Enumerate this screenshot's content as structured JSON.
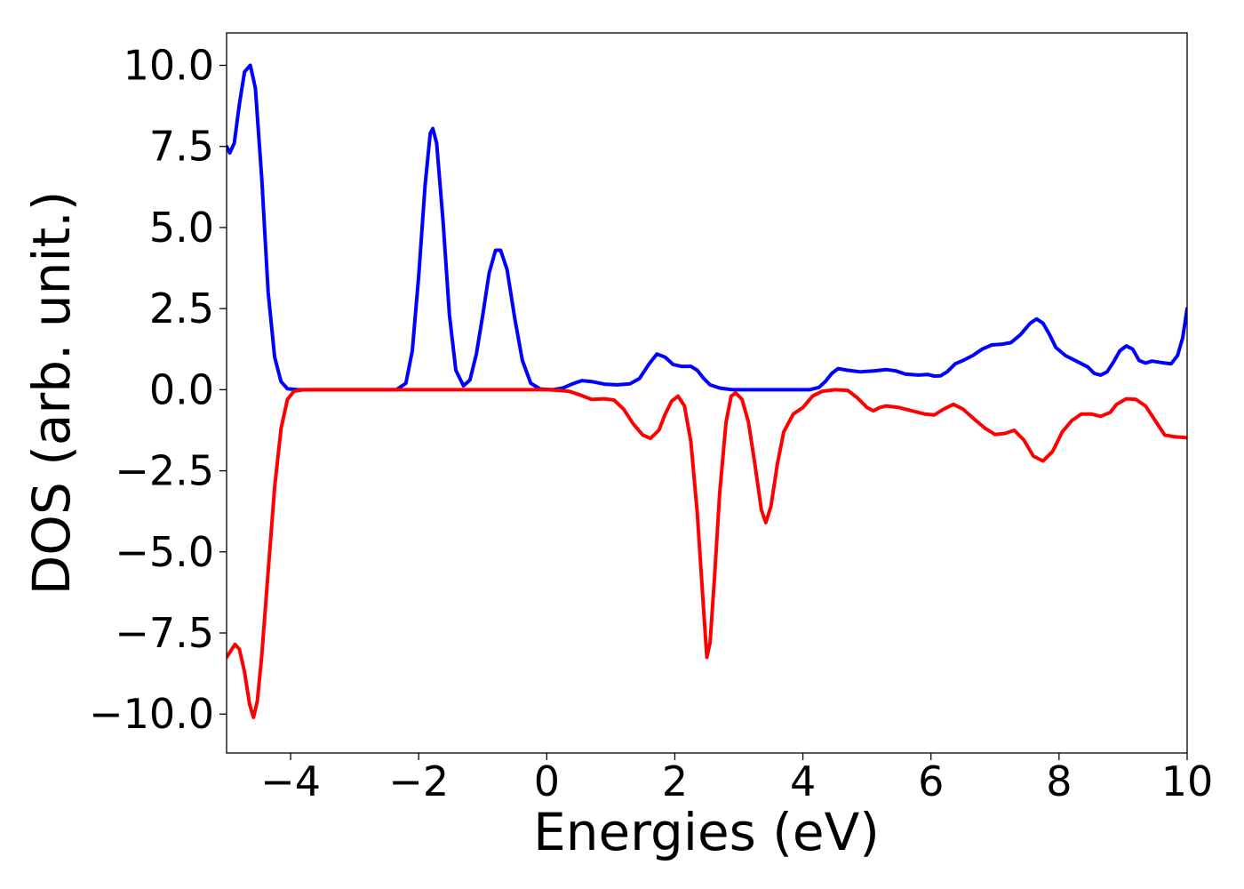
{
  "chart_data": {
    "type": "line",
    "title": "",
    "xlabel": "Energies (eV)",
    "ylabel": "DOS (arb. unit.)",
    "xlim": [
      -5,
      10
    ],
    "ylim": [
      -11.2,
      11
    ],
    "grid": false,
    "x_ticks": [
      -4,
      -2,
      0,
      2,
      4,
      6,
      8,
      10
    ],
    "x_tick_labels": [
      "−4",
      "−2",
      "0",
      "2",
      "4",
      "6",
      "8",
      "10"
    ],
    "y_ticks": [
      10,
      7.5,
      5,
      2.5,
      0,
      -2.5,
      -5,
      -7.5,
      -10
    ],
    "y_tick_labels": [
      "10.0",
      "7.5",
      "5.0",
      "2.5",
      "0.0",
      "−2.5",
      "−5.0",
      "−7.5",
      "−10.0"
    ],
    "series": [
      {
        "color": "#0000ff",
        "points": [
          [
            -5.0,
            7.5
          ],
          [
            -4.95,
            7.3
          ],
          [
            -4.88,
            7.6
          ],
          [
            -4.8,
            8.8
          ],
          [
            -4.72,
            9.8
          ],
          [
            -4.63,
            10.0
          ],
          [
            -4.55,
            9.3
          ],
          [
            -4.45,
            6.5
          ],
          [
            -4.35,
            3.0
          ],
          [
            -4.25,
            1.0
          ],
          [
            -4.15,
            0.25
          ],
          [
            -4.05,
            0.03
          ],
          [
            -3.9,
            0.0
          ],
          [
            -3.0,
            0.0
          ],
          [
            -2.35,
            0.0
          ],
          [
            -2.2,
            0.2
          ],
          [
            -2.1,
            1.2
          ],
          [
            -2.0,
            3.5
          ],
          [
            -1.9,
            6.3
          ],
          [
            -1.82,
            7.9
          ],
          [
            -1.78,
            8.05
          ],
          [
            -1.72,
            7.6
          ],
          [
            -1.62,
            5.2
          ],
          [
            -1.52,
            2.3
          ],
          [
            -1.42,
            0.6
          ],
          [
            -1.3,
            0.12
          ],
          [
            -1.2,
            0.3
          ],
          [
            -1.1,
            1.1
          ],
          [
            -1.0,
            2.3
          ],
          [
            -0.9,
            3.6
          ],
          [
            -0.8,
            4.3
          ],
          [
            -0.72,
            4.3
          ],
          [
            -0.62,
            3.7
          ],
          [
            -0.5,
            2.2
          ],
          [
            -0.38,
            0.9
          ],
          [
            -0.25,
            0.2
          ],
          [
            -0.1,
            0.02
          ],
          [
            0.1,
            0.0
          ],
          [
            0.25,
            0.05
          ],
          [
            0.4,
            0.18
          ],
          [
            0.55,
            0.28
          ],
          [
            0.7,
            0.25
          ],
          [
            0.9,
            0.17
          ],
          [
            1.1,
            0.15
          ],
          [
            1.3,
            0.18
          ],
          [
            1.45,
            0.35
          ],
          [
            1.6,
            0.8
          ],
          [
            1.72,
            1.1
          ],
          [
            1.85,
            1.0
          ],
          [
            1.97,
            0.78
          ],
          [
            2.1,
            0.72
          ],
          [
            2.25,
            0.72
          ],
          [
            2.35,
            0.6
          ],
          [
            2.45,
            0.35
          ],
          [
            2.55,
            0.15
          ],
          [
            2.7,
            0.05
          ],
          [
            2.9,
            0.0
          ],
          [
            3.5,
            0.0
          ],
          [
            4.1,
            0.0
          ],
          [
            4.25,
            0.07
          ],
          [
            4.35,
            0.25
          ],
          [
            4.45,
            0.5
          ],
          [
            4.55,
            0.65
          ],
          [
            4.7,
            0.6
          ],
          [
            4.9,
            0.55
          ],
          [
            5.1,
            0.58
          ],
          [
            5.3,
            0.62
          ],
          [
            5.45,
            0.58
          ],
          [
            5.6,
            0.48
          ],
          [
            5.8,
            0.45
          ],
          [
            5.95,
            0.47
          ],
          [
            6.05,
            0.42
          ],
          [
            6.15,
            0.43
          ],
          [
            6.25,
            0.55
          ],
          [
            6.38,
            0.8
          ],
          [
            6.5,
            0.9
          ],
          [
            6.65,
            1.05
          ],
          [
            6.8,
            1.25
          ],
          [
            6.95,
            1.38
          ],
          [
            7.1,
            1.4
          ],
          [
            7.25,
            1.45
          ],
          [
            7.4,
            1.7
          ],
          [
            7.55,
            2.05
          ],
          [
            7.65,
            2.18
          ],
          [
            7.75,
            2.05
          ],
          [
            7.85,
            1.7
          ],
          [
            7.95,
            1.3
          ],
          [
            8.1,
            1.05
          ],
          [
            8.3,
            0.85
          ],
          [
            8.45,
            0.7
          ],
          [
            8.55,
            0.5
          ],
          [
            8.65,
            0.45
          ],
          [
            8.75,
            0.55
          ],
          [
            8.85,
            0.85
          ],
          [
            8.95,
            1.2
          ],
          [
            9.05,
            1.35
          ],
          [
            9.15,
            1.25
          ],
          [
            9.25,
            0.9
          ],
          [
            9.35,
            0.82
          ],
          [
            9.45,
            0.88
          ],
          [
            9.55,
            0.85
          ],
          [
            9.65,
            0.82
          ],
          [
            9.75,
            0.8
          ],
          [
            9.85,
            1.05
          ],
          [
            9.93,
            1.6
          ],
          [
            10.0,
            2.5
          ]
        ]
      },
      {
        "color": "#ff0000",
        "points": [
          [
            -5.0,
            -8.25
          ],
          [
            -4.95,
            -8.1
          ],
          [
            -4.87,
            -7.85
          ],
          [
            -4.8,
            -8.0
          ],
          [
            -4.72,
            -8.7
          ],
          [
            -4.64,
            -9.7
          ],
          [
            -4.58,
            -10.1
          ],
          [
            -4.52,
            -9.6
          ],
          [
            -4.45,
            -8.2
          ],
          [
            -4.35,
            -5.6
          ],
          [
            -4.25,
            -3.0
          ],
          [
            -4.15,
            -1.2
          ],
          [
            -4.05,
            -0.3
          ],
          [
            -3.95,
            -0.05
          ],
          [
            -3.8,
            0.0
          ],
          [
            -3.0,
            0.0
          ],
          [
            0.0,
            0.0
          ],
          [
            0.2,
            -0.02
          ],
          [
            0.35,
            -0.05
          ],
          [
            0.5,
            -0.15
          ],
          [
            0.7,
            -0.3
          ],
          [
            0.9,
            -0.28
          ],
          [
            1.05,
            -0.32
          ],
          [
            1.2,
            -0.6
          ],
          [
            1.35,
            -1.05
          ],
          [
            1.5,
            -1.4
          ],
          [
            1.62,
            -1.5
          ],
          [
            1.75,
            -1.25
          ],
          [
            1.85,
            -0.75
          ],
          [
            1.95,
            -0.35
          ],
          [
            2.05,
            -0.2
          ],
          [
            2.15,
            -0.5
          ],
          [
            2.25,
            -1.6
          ],
          [
            2.35,
            -3.8
          ],
          [
            2.45,
            -6.8
          ],
          [
            2.5,
            -8.25
          ],
          [
            2.55,
            -7.8
          ],
          [
            2.62,
            -5.8
          ],
          [
            2.7,
            -3.2
          ],
          [
            2.8,
            -1.0
          ],
          [
            2.88,
            -0.2
          ],
          [
            2.95,
            -0.1
          ],
          [
            3.05,
            -0.3
          ],
          [
            3.15,
            -1.0
          ],
          [
            3.25,
            -2.3
          ],
          [
            3.35,
            -3.7
          ],
          [
            3.42,
            -4.1
          ],
          [
            3.5,
            -3.6
          ],
          [
            3.6,
            -2.3
          ],
          [
            3.7,
            -1.3
          ],
          [
            3.85,
            -0.75
          ],
          [
            4.0,
            -0.55
          ],
          [
            4.15,
            -0.2
          ],
          [
            4.3,
            -0.05
          ],
          [
            4.5,
            0.0
          ],
          [
            4.7,
            -0.02
          ],
          [
            4.85,
            -0.25
          ],
          [
            5.0,
            -0.55
          ],
          [
            5.1,
            -0.65
          ],
          [
            5.2,
            -0.55
          ],
          [
            5.3,
            -0.5
          ],
          [
            5.5,
            -0.55
          ],
          [
            5.7,
            -0.65
          ],
          [
            5.9,
            -0.75
          ],
          [
            6.05,
            -0.78
          ],
          [
            6.2,
            -0.6
          ],
          [
            6.35,
            -0.45
          ],
          [
            6.5,
            -0.6
          ],
          [
            6.7,
            -0.95
          ],
          [
            6.85,
            -1.2
          ],
          [
            7.0,
            -1.38
          ],
          [
            7.15,
            -1.35
          ],
          [
            7.3,
            -1.25
          ],
          [
            7.45,
            -1.55
          ],
          [
            7.6,
            -2.05
          ],
          [
            7.75,
            -2.2
          ],
          [
            7.9,
            -1.9
          ],
          [
            8.05,
            -1.3
          ],
          [
            8.2,
            -0.95
          ],
          [
            8.35,
            -0.75
          ],
          [
            8.5,
            -0.75
          ],
          [
            8.65,
            -0.82
          ],
          [
            8.8,
            -0.7
          ],
          [
            8.9,
            -0.45
          ],
          [
            9.05,
            -0.28
          ],
          [
            9.2,
            -0.3
          ],
          [
            9.35,
            -0.5
          ],
          [
            9.5,
            -0.95
          ],
          [
            9.65,
            -1.4
          ],
          [
            9.8,
            -1.45
          ],
          [
            10.0,
            -1.48
          ]
        ]
      }
    ]
  }
}
